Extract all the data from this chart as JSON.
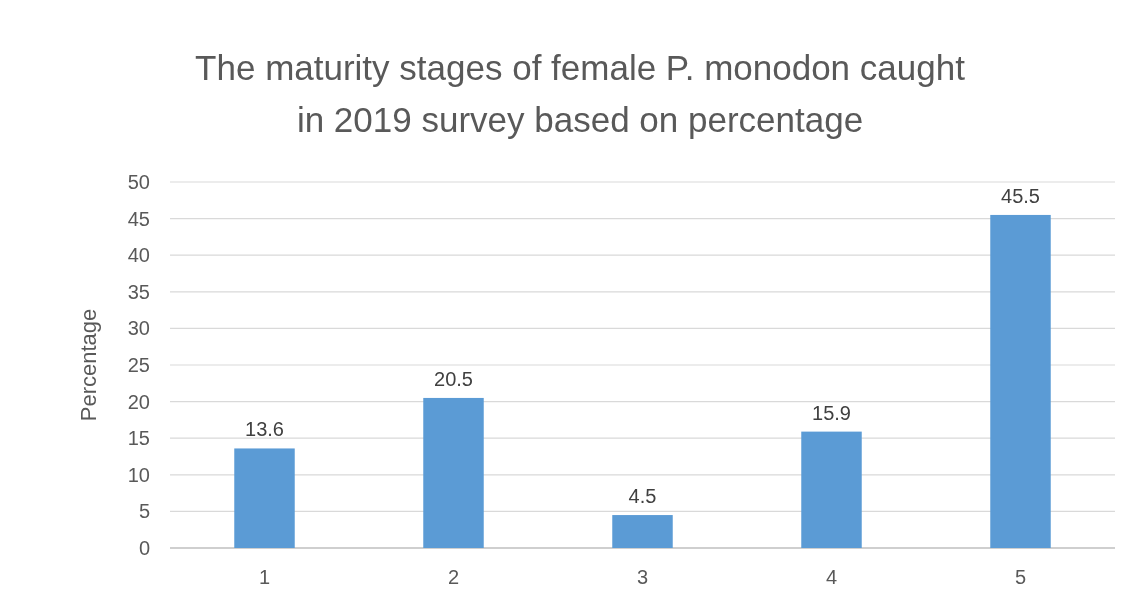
{
  "chart_data": {
    "type": "bar",
    "title": "The maturity stages of female P. monodon caught in 2019 survey based on percentage",
    "ylabel": "Percentage",
    "categories": [
      "1",
      "2",
      "3",
      "4",
      "5"
    ],
    "values": [
      13.6,
      20.5,
      4.5,
      15.9,
      45.5
    ],
    "color": "#5b9bd5",
    "ylim": [
      0,
      50
    ],
    "yticks": [
      0,
      5,
      10,
      15,
      20,
      25,
      30,
      35,
      40,
      45,
      50
    ],
    "grid": "y",
    "data_labels": true
  }
}
